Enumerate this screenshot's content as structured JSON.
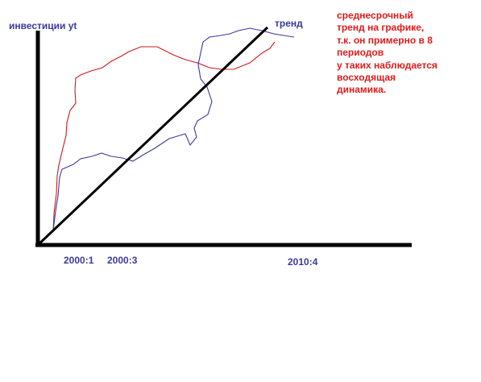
{
  "chart_data": {
    "type": "line",
    "title": "",
    "xlabel": "",
    "ylabel": "инвестиции yt",
    "x_ticks": [
      "2000:1",
      "2000:3",
      "2010:4"
    ],
    "series": [
      {
        "name": "",
        "color": "#cc1a1a",
        "description_kind": "hand-drawn curve"
      },
      {
        "name": "",
        "color": "#3a3aa0",
        "description_kind": "hand-drawn curve"
      },
      {
        "name": "тренд",
        "color": "#000000",
        "description_kind": "straight trend line"
      }
    ],
    "grid": false,
    "legend": "none"
  },
  "annotation": {
    "lines": [
      "среднесрочный",
      "тренд на графике,",
      "т.к. он примерно в 8",
      "периодов",
      "у таких наблюдается",
      "восходящая",
      "динамика."
    ]
  },
  "colors": {
    "red": "#e01b1b",
    "blue": "#3a3aa0",
    "axis": "#000000"
  }
}
